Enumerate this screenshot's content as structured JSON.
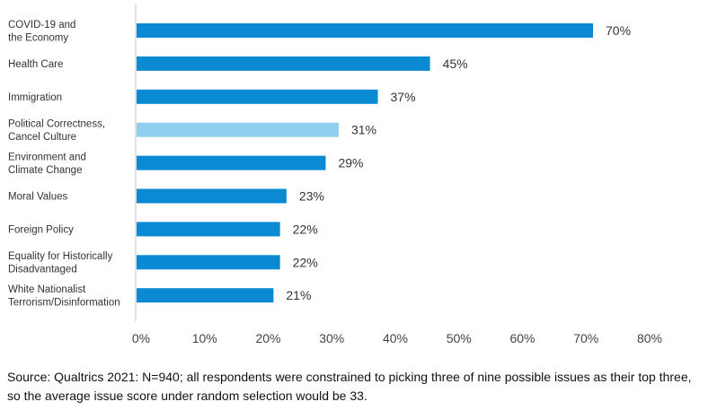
{
  "chart_data": {
    "type": "bar",
    "orientation": "horizontal",
    "title": "",
    "xlabel": "",
    "ylabel": "",
    "xlim": [
      0,
      80
    ],
    "grid": false,
    "categories": [
      [
        "COVID-19 and",
        "the Economy"
      ],
      [
        "Health Care"
      ],
      [
        "Immigration"
      ],
      [
        "Political Correctness,",
        "Cancel Culture"
      ],
      [
        "Environment and",
        "Climate Change"
      ],
      [
        "Moral Values"
      ],
      [
        "Foreign Policy"
      ],
      [
        "Equality for Historically",
        "Disadvantaged"
      ],
      [
        "White Nationalist",
        "Terrorism/Disinformation"
      ]
    ],
    "values": [
      70,
      45,
      37,
      31,
      29,
      23,
      22,
      22,
      21
    ],
    "value_labels": [
      "70%",
      "45%",
      "37%",
      "31%",
      "29%",
      "23%",
      "22%",
      "22%",
      "21%"
    ],
    "highlighted_index": 3,
    "colors": {
      "bar": "#0a8ad2",
      "highlight": "#8fd0ee",
      "axis": "#d9d9d9"
    },
    "x_ticks": [
      0,
      10,
      20,
      30,
      40,
      50,
      60,
      70,
      80
    ],
    "x_tick_labels": [
      "0%",
      "10%",
      "20%",
      "30%",
      "40%",
      "50%",
      "60%",
      "70%",
      "80%"
    ]
  },
  "source_note": "Source: Qualtrics 2021: N=940; all respondents were constrained to picking three of nine possible issues as their top three, so the average issue score under random selection would be 33."
}
